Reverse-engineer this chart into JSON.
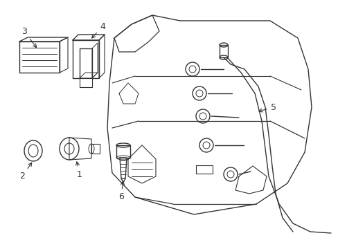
{
  "background_color": "#ffffff",
  "line_color": "#333333",
  "lw": 1.0,
  "fig_width": 4.89,
  "fig_height": 3.6,
  "dpi": 100
}
